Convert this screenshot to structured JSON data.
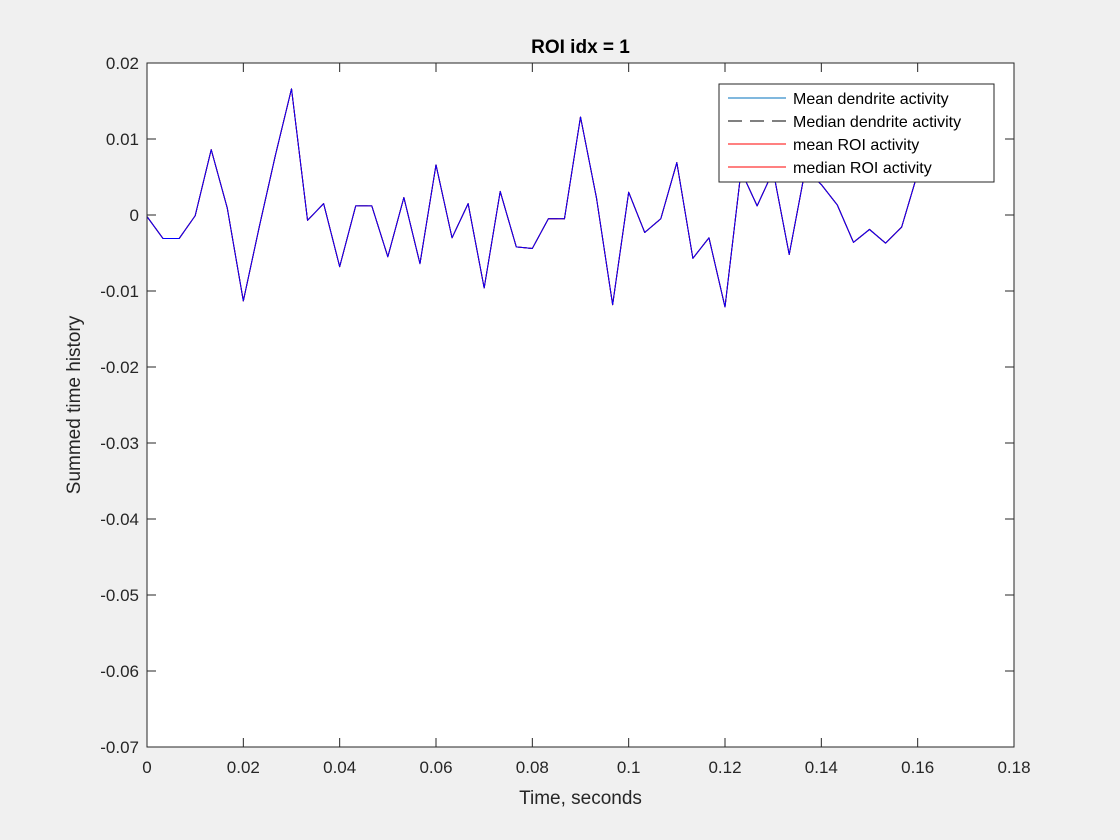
{
  "chart_data": {
    "type": "line",
    "title": "ROI idx = 1",
    "xlabel": "Time, seconds",
    "ylabel": "Summed time history",
    "xlim": [
      0,
      0.18
    ],
    "ylim": [
      -0.07,
      0.02
    ],
    "x_ticks": [
      0,
      0.02,
      0.04,
      0.06,
      0.08,
      0.1,
      0.12,
      0.14,
      0.16,
      0.18
    ],
    "x_tick_labels": [
      "0",
      "0.02",
      "0.04",
      "0.06",
      "0.08",
      "0.1",
      "0.12",
      "0.14",
      "0.16",
      "0.18"
    ],
    "y_ticks": [
      -0.07,
      -0.06,
      -0.05,
      -0.04,
      -0.03,
      -0.02,
      -0.01,
      0,
      0.01,
      0.02
    ],
    "y_tick_labels": [
      "-0.07",
      "-0.06",
      "-0.05",
      "-0.04",
      "-0.03",
      "-0.02",
      "-0.01",
      "0",
      "0.01",
      "0.02"
    ],
    "grid": false,
    "legend_position": "top-right",
    "x": [
      0,
      0.00333,
      0.00667,
      0.01,
      0.01333,
      0.01667,
      0.02,
      0.02333,
      0.02667,
      0.03,
      0.03333,
      0.03667,
      0.04,
      0.04333,
      0.04667,
      0.05,
      0.05333,
      0.05667,
      0.06,
      0.06333,
      0.06667,
      0.07,
      0.07333,
      0.07667,
      0.08,
      0.08333,
      0.08667,
      0.09,
      0.09333,
      0.09667,
      0.1,
      0.10333,
      0.10667,
      0.11,
      0.11333,
      0.11667,
      0.12,
      0.12333,
      0.12667,
      0.13,
      0.13333,
      0.13667,
      0.14,
      0.14333,
      0.14667,
      0.15,
      0.15333,
      0.15667,
      0.16
    ],
    "series": [
      {
        "name": "Mean dendrite activity",
        "color": "#0072bd",
        "dash": "solid",
        "values": [
          -0.0002,
          -0.0031,
          -0.0031,
          -0.0001,
          0.0086,
          0.0009,
          -0.0113,
          -0.0015,
          0.0079,
          0.0166,
          -0.0007,
          0.0015,
          -0.0068,
          0.0012,
          0.0012,
          -0.0055,
          0.0023,
          -0.0064,
          0.0066,
          -0.003,
          0.0015,
          -0.0096,
          0.0031,
          -0.0042,
          -0.0044,
          -0.0005,
          -0.0005,
          0.0129,
          0.0022,
          -0.0118,
          0.003,
          -0.0023,
          -0.0005,
          0.0069,
          -0.0057,
          -0.003,
          -0.0121,
          0.0058,
          0.0012,
          0.0058,
          -0.0052,
          0.006,
          0.004,
          0.0013,
          -0.0036,
          -0.0019,
          -0.0037,
          -0.0016,
          0.0055
        ]
      },
      {
        "name": "Median dendrite activity",
        "color": "#000000",
        "dash": "dashed",
        "values": [
          -0.0002,
          -0.0031,
          -0.0031,
          -0.0001,
          0.0086,
          0.0009,
          -0.0113,
          -0.0015,
          0.0079,
          0.0166,
          -0.0007,
          0.0015,
          -0.0068,
          0.0012,
          0.0012,
          -0.0055,
          0.0023,
          -0.0064,
          0.0066,
          -0.003,
          0.0015,
          -0.0096,
          0.0031,
          -0.0042,
          -0.0044,
          -0.0005,
          -0.0005,
          0.0129,
          0.0022,
          -0.0118,
          0.003,
          -0.0023,
          -0.0005,
          0.0069,
          -0.0057,
          -0.003,
          -0.0121,
          0.0058,
          0.0012,
          0.0058,
          -0.0052,
          0.006,
          0.004,
          0.0013,
          -0.0036,
          -0.0019,
          -0.0037,
          -0.0016,
          0.0055
        ]
      },
      {
        "name": "mean ROI activity",
        "color": "#ff0000",
        "dash": "solid",
        "values": [
          -0.0002,
          -0.0031,
          -0.0031,
          -0.0001,
          0.0086,
          0.0009,
          -0.0113,
          -0.0015,
          0.0079,
          0.0166,
          -0.0007,
          0.0015,
          -0.0068,
          0.0012,
          0.0012,
          -0.0055,
          0.0023,
          -0.0064,
          0.0066,
          -0.003,
          0.0015,
          -0.0096,
          0.0031,
          -0.0042,
          -0.0044,
          -0.0005,
          -0.0005,
          0.0129,
          0.0022,
          -0.0118,
          0.003,
          -0.0023,
          -0.0005,
          0.0069,
          -0.0057,
          -0.003,
          -0.0121,
          0.0058,
          0.0012,
          0.0058,
          -0.0052,
          0.006,
          0.004,
          0.0013,
          -0.0036,
          -0.0019,
          -0.0037,
          -0.0016,
          0.0055
        ]
      },
      {
        "name": "median ROI activity",
        "color": "#ff0000",
        "dash": "solid",
        "values": [
          -0.0002,
          -0.0031,
          -0.0031,
          -0.0001,
          0.0086,
          0.0009,
          -0.0113,
          -0.0015,
          0.0079,
          0.0166,
          -0.0007,
          0.0015,
          -0.0068,
          0.0012,
          0.0012,
          -0.0055,
          0.0023,
          -0.0064,
          0.0066,
          -0.003,
          0.0015,
          -0.0096,
          0.0031,
          -0.0042,
          -0.0044,
          -0.0005,
          -0.0005,
          0.0129,
          0.0022,
          -0.0118,
          0.003,
          -0.0023,
          -0.0005,
          0.0069,
          -0.0057,
          -0.003,
          -0.0121,
          0.0058,
          0.0012,
          0.0058,
          -0.0052,
          0.006,
          0.004,
          0.0013,
          -0.0036,
          -0.0019,
          -0.0037,
          -0.0016,
          0.0055
        ]
      },
      {
        "name": "",
        "color": "#0000ff",
        "dash": "solid",
        "values": [
          -0.0002,
          -0.0031,
          -0.0031,
          -0.0001,
          0.0086,
          0.0009,
          -0.0113,
          -0.0015,
          0.0079,
          0.0166,
          -0.0007,
          0.0015,
          -0.0068,
          0.0012,
          0.0012,
          -0.0055,
          0.0023,
          -0.0064,
          0.0066,
          -0.003,
          0.0015,
          -0.0096,
          0.0031,
          -0.0042,
          -0.0044,
          -0.0005,
          -0.0005,
          0.0129,
          0.0022,
          -0.0118,
          0.003,
          -0.0023,
          -0.0005,
          0.0069,
          -0.0057,
          -0.003,
          -0.0121,
          0.0058,
          0.0012,
          0.0058,
          -0.0052,
          0.006,
          0.004,
          0.0013,
          -0.0036,
          -0.0019,
          -0.0037,
          -0.0016,
          0.0055
        ]
      }
    ],
    "legend_series": [
      0,
      1,
      2,
      3
    ]
  }
}
